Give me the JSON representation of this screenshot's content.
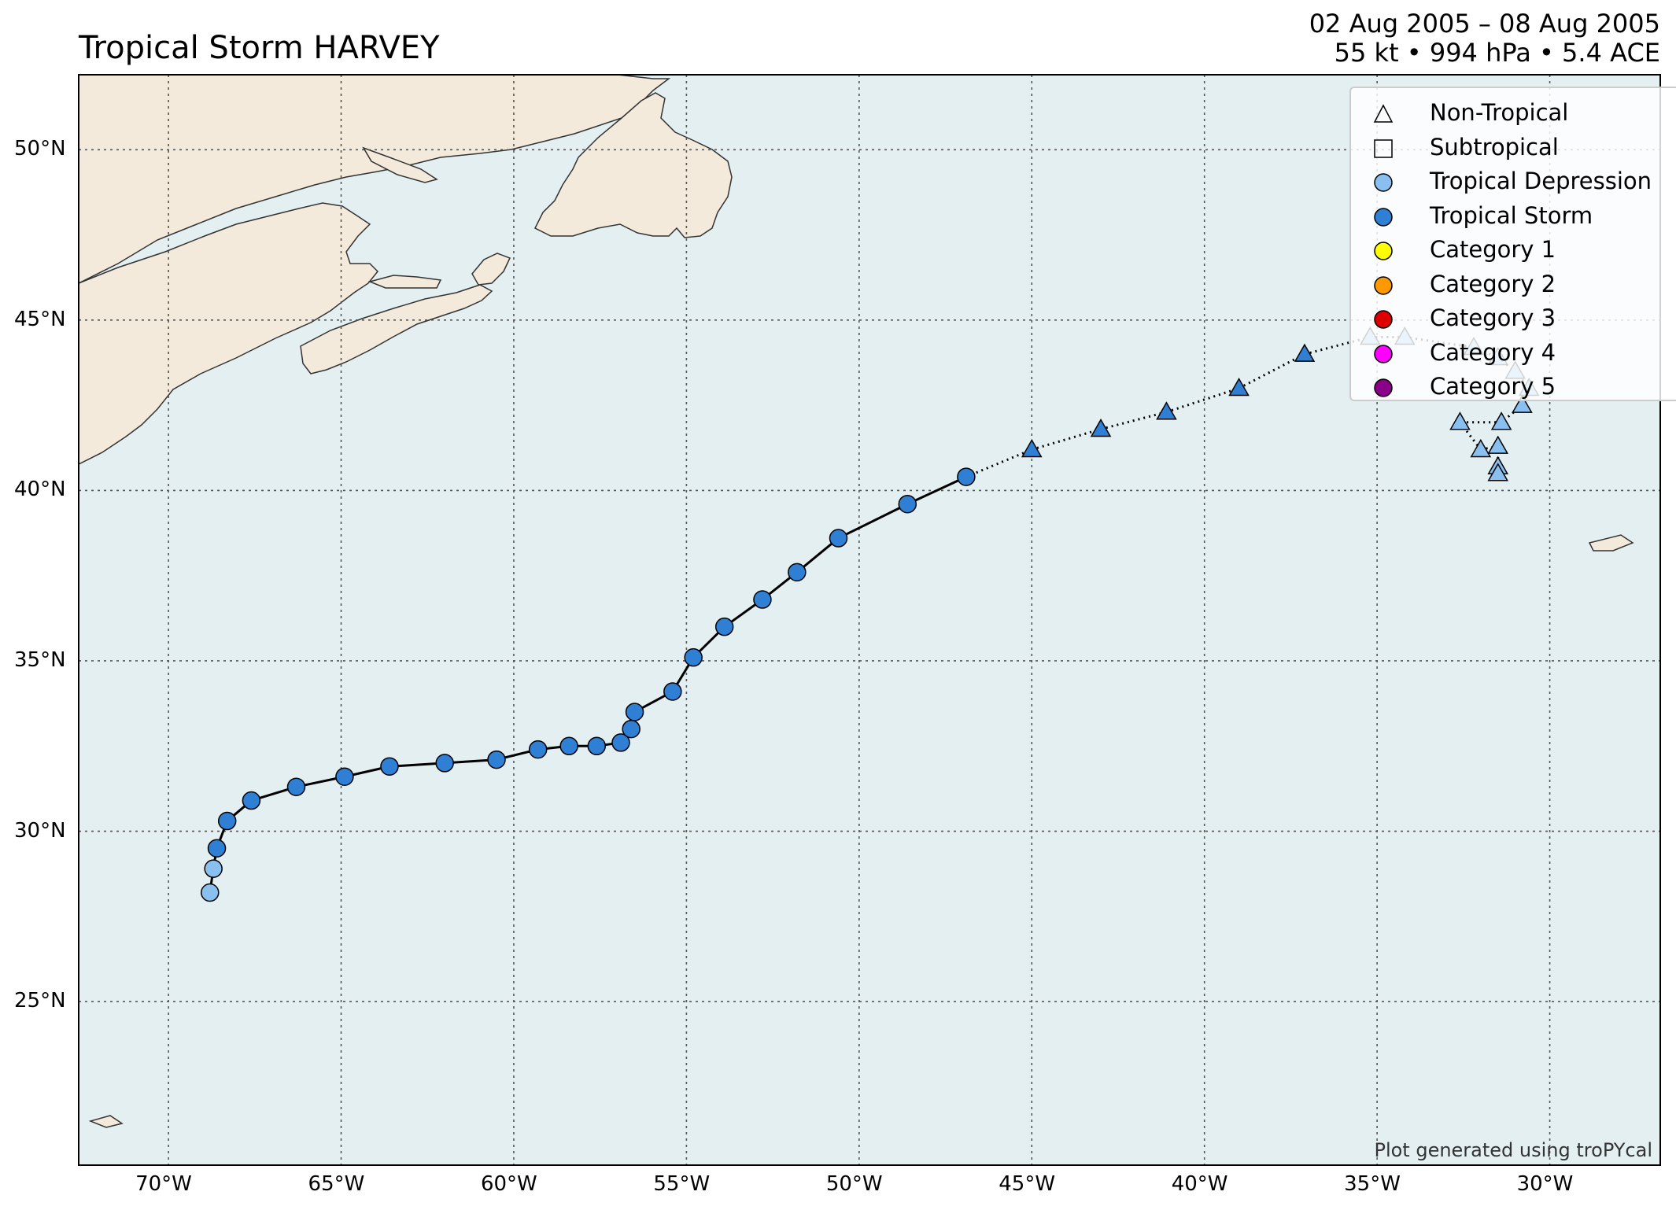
{
  "title": "Tropical Storm HARVEY",
  "subtitle_line1": "02 Aug 2005 – 08 Aug 2005",
  "subtitle_line2": "55 kt • 994 hPa • 5.4 ACE",
  "credit": "Plot generated using troPYcal",
  "colors": {
    "ocean": "#e4eff2",
    "land": "#f3eadc",
    "coast": "#333333",
    "grid": "#555555",
    "tropical_depression": "#89c0f0",
    "tropical_storm": "#2f7fd4",
    "category_1": "#ffff00",
    "category_2": "#ff9900",
    "category_3": "#dd0000",
    "category_4": "#ff00ff",
    "category_5": "#8b0088"
  },
  "legend": [
    {
      "label": "Non-Tropical",
      "marker": "triangle",
      "fill": "none"
    },
    {
      "label": "Subtropical",
      "marker": "square",
      "fill": "none"
    },
    {
      "label": "Tropical Depression",
      "marker": "circle",
      "fill": "#89c0f0"
    },
    {
      "label": "Tropical Storm",
      "marker": "circle",
      "fill": "#2f7fd4"
    },
    {
      "label": "Category 1",
      "marker": "circle",
      "fill": "#ffff00"
    },
    {
      "label": "Category 2",
      "marker": "circle",
      "fill": "#ff9900"
    },
    {
      "label": "Category 3",
      "marker": "circle",
      "fill": "#dd0000"
    },
    {
      "label": "Category 4",
      "marker": "circle",
      "fill": "#ff00ff"
    },
    {
      "label": "Category 5",
      "marker": "circle",
      "fill": "#8b0088"
    }
  ],
  "axes": {
    "lon_range": [
      -72.6,
      -26.8
    ],
    "lat_range": [
      20.2,
      52.2
    ],
    "lon_ticks": [
      -70,
      -65,
      -60,
      -55,
      -50,
      -45,
      -40,
      -35,
      -30
    ],
    "lon_labels": [
      "70°W",
      "65°W",
      "60°W",
      "55°W",
      "50°W",
      "45°W",
      "40°W",
      "35°W",
      "30°W"
    ],
    "lat_ticks": [
      25,
      30,
      35,
      40,
      45,
      50
    ],
    "lat_labels": [
      "25°N",
      "30°N",
      "35°N",
      "40°N",
      "45°N",
      "50°N"
    ],
    "grid": true,
    "legend_position": "top-right"
  },
  "track": [
    {
      "lon": -68.8,
      "lat": 28.2,
      "type": "TD"
    },
    {
      "lon": -68.7,
      "lat": 28.9,
      "type": "TD"
    },
    {
      "lon": -68.6,
      "lat": 29.5,
      "type": "TS"
    },
    {
      "lon": -68.3,
      "lat": 30.3,
      "type": "TS"
    },
    {
      "lon": -67.6,
      "lat": 30.9,
      "type": "TS"
    },
    {
      "lon": -66.3,
      "lat": 31.3,
      "type": "TS"
    },
    {
      "lon": -64.9,
      "lat": 31.6,
      "type": "TS"
    },
    {
      "lon": -63.6,
      "lat": 31.9,
      "type": "TS"
    },
    {
      "lon": -62.0,
      "lat": 32.0,
      "type": "TS"
    },
    {
      "lon": -60.5,
      "lat": 32.1,
      "type": "TS"
    },
    {
      "lon": -59.3,
      "lat": 32.4,
      "type": "TS"
    },
    {
      "lon": -58.4,
      "lat": 32.5,
      "type": "TS"
    },
    {
      "lon": -57.6,
      "lat": 32.5,
      "type": "TS"
    },
    {
      "lon": -56.9,
      "lat": 32.6,
      "type": "TS"
    },
    {
      "lon": -56.6,
      "lat": 33.0,
      "type": "TS"
    },
    {
      "lon": -56.5,
      "lat": 33.5,
      "type": "TS"
    },
    {
      "lon": -55.4,
      "lat": 34.1,
      "type": "TS"
    },
    {
      "lon": -54.8,
      "lat": 35.1,
      "type": "TS"
    },
    {
      "lon": -53.9,
      "lat": 36.0,
      "type": "TS"
    },
    {
      "lon": -52.8,
      "lat": 36.8,
      "type": "TS"
    },
    {
      "lon": -51.8,
      "lat": 37.6,
      "type": "TS"
    },
    {
      "lon": -50.6,
      "lat": 38.6,
      "type": "TS"
    },
    {
      "lon": -48.6,
      "lat": 39.6,
      "type": "TS"
    },
    {
      "lon": -46.9,
      "lat": 40.4,
      "type": "TS"
    },
    {
      "lon": -45.0,
      "lat": 41.2,
      "type": "EX-TS"
    },
    {
      "lon": -43.0,
      "lat": 41.8,
      "type": "EX-TS"
    },
    {
      "lon": -41.1,
      "lat": 42.3,
      "type": "EX-TS"
    },
    {
      "lon": -39.0,
      "lat": 43.0,
      "type": "EX-TS"
    },
    {
      "lon": -37.1,
      "lat": 44.0,
      "type": "EX-TS"
    },
    {
      "lon": -35.2,
      "lat": 44.5,
      "type": "EX-TD"
    },
    {
      "lon": -34.2,
      "lat": 44.5,
      "type": "EX-TD"
    },
    {
      "lon": -32.2,
      "lat": 44.2,
      "type": "EX-TD"
    },
    {
      "lon": -31.5,
      "lat": 43.9,
      "type": "EX-TD"
    },
    {
      "lon": -31.0,
      "lat": 43.5,
      "type": "EX-TD"
    },
    {
      "lon": -30.6,
      "lat": 43.0,
      "type": "EX-TD"
    },
    {
      "lon": -30.8,
      "lat": 42.5,
      "type": "EX-TD"
    },
    {
      "lon": -31.4,
      "lat": 42.0,
      "type": "EX-TD"
    },
    {
      "lon": -32.6,
      "lat": 42.0,
      "type": "EX-TD"
    },
    {
      "lon": -32.0,
      "lat": 41.2,
      "type": "EX-TD"
    },
    {
      "lon": -31.5,
      "lat": 41.3,
      "type": "EX-TD"
    },
    {
      "lon": -31.5,
      "lat": 40.7,
      "type": "EX-TD"
    },
    {
      "lon": -31.5,
      "lat": 40.5,
      "type": "EX-TD"
    }
  ]
}
